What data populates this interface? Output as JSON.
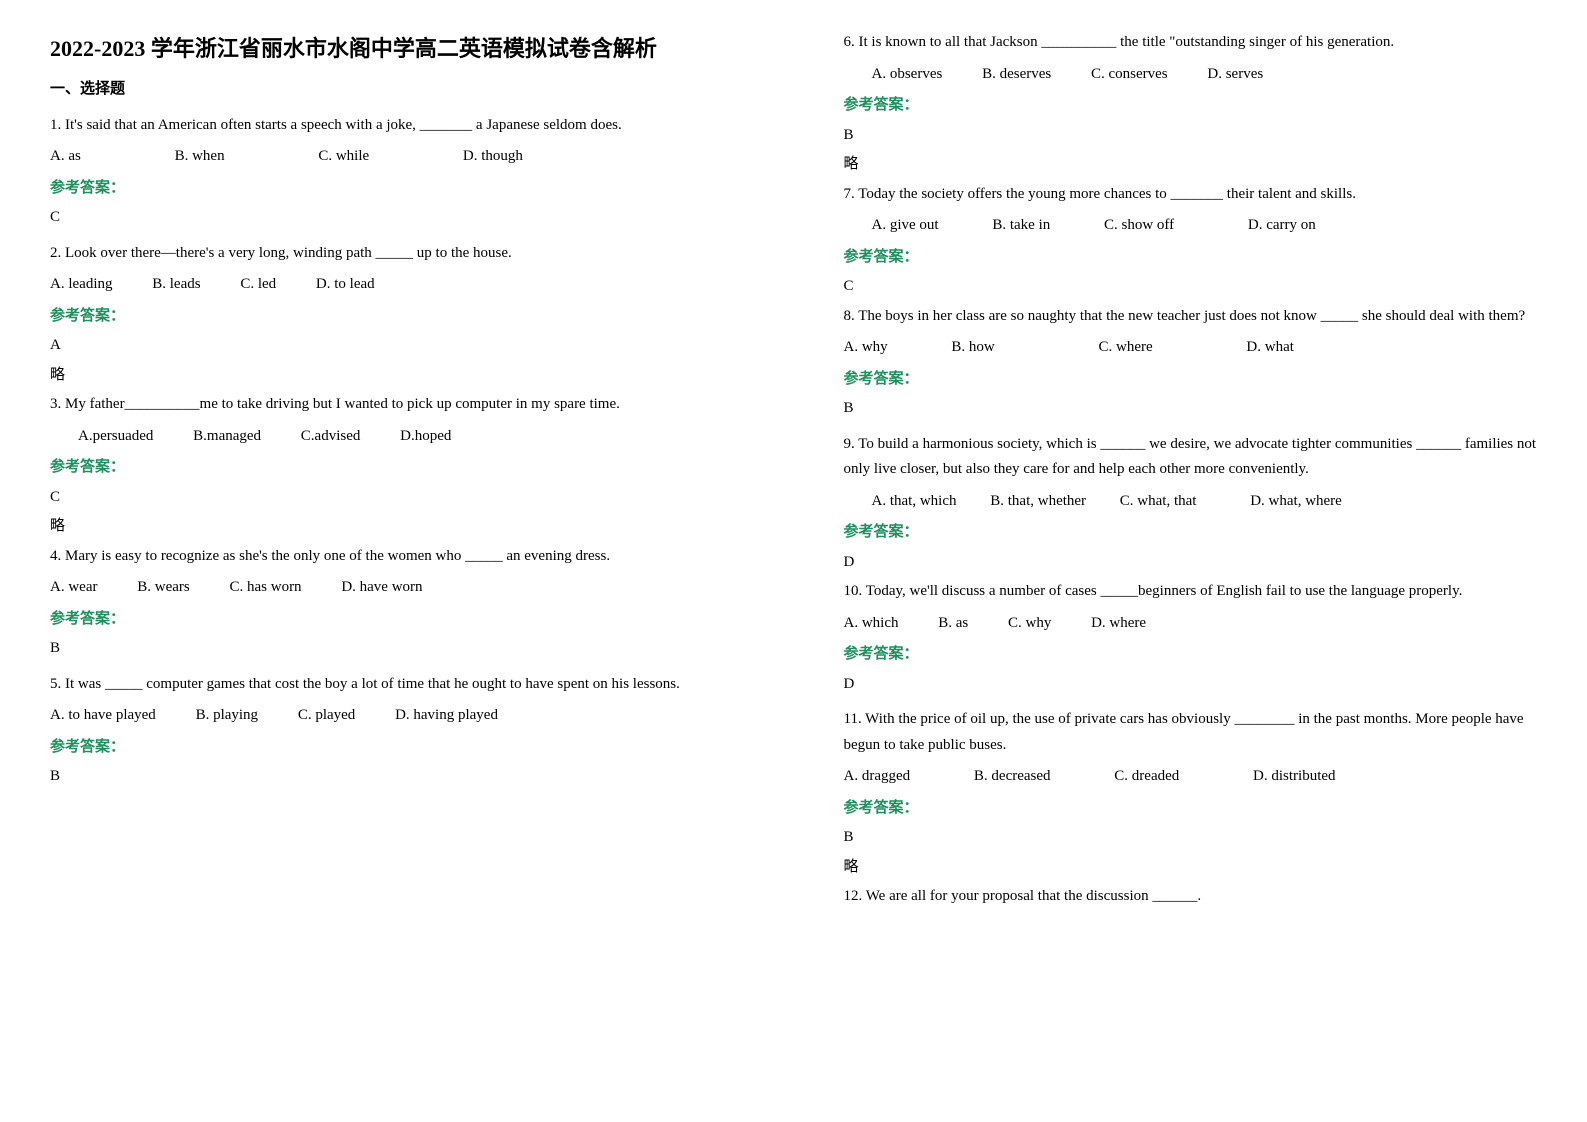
{
  "left": {
    "title": "2022-2023 学年浙江省丽水市水阁中学高二英语模拟试卷含解析",
    "section1": "一、选择题",
    "q1": {
      "text": "1. It's said that an American often starts a speech with a joke, _______ a Japanese seldom does.",
      "opts": [
        "A. as",
        "B. when",
        "C. while",
        "D. though"
      ],
      "ansLabel": "参考答案：",
      "ans": "C"
    },
    "q2": {
      "text": "2. Look over there—there's a very long, winding path _____ up to the house.",
      "opts": [
        "A. leading",
        "B. leads",
        "C. led",
        "D. to lead"
      ],
      "ansLabel": "参考答案：",
      "ans": "A",
      "note": "略"
    },
    "q3": {
      "text": "3. My father__________me to take driving but I wanted to pick up computer in my spare time.",
      "opts": [
        "A.persuaded",
        "B.managed",
        "C.advised",
        "D.hoped"
      ],
      "ansLabel": "参考答案：",
      "ans": "C",
      "note": "略"
    },
    "q4": {
      "text": "4. Mary is easy to recognize as she's the only one of the women who _____ an evening dress.",
      "opts": [
        "A. wear",
        "B. wears",
        "C. has worn",
        "D. have worn"
      ],
      "ansLabel": "参考答案：",
      "ans": "B"
    },
    "q5": {
      "text": "5. It was _____ computer games that cost the boy a lot of time that he ought to have spent on his lessons.",
      "opts": [
        "A. to have played",
        "B. playing",
        "C. played",
        "D. having played"
      ],
      "ansLabel": "参考答案：",
      "ans": "B"
    }
  },
  "right": {
    "q6": {
      "text": "6. It is known to all that Jackson __________ the title \"outstanding singer of his generation.",
      "opts": [
        "A. observes",
        "B. deserves",
        "C. conserves",
        "D. serves"
      ],
      "ansLabel": "参考答案：",
      "ans": "B",
      "note": "略"
    },
    "q7": {
      "text": "7. Today the society offers the young more chances to _______ their talent and skills.",
      "opts": [
        "A. give out",
        "B. take in",
        "C. show off",
        "D. carry on"
      ],
      "ansLabel": "参考答案：",
      "ans": "C"
    },
    "q8": {
      "text": "8. The boys in her class are so naughty that the new teacher just does not know _____ she should deal with them?",
      "opts": [
        "A. why",
        "B. how",
        "C. where",
        "D. what"
      ],
      "ansLabel": "参考答案：",
      "ans": "B"
    },
    "q9": {
      "text": "9. To build a harmonious society, which is ______ we desire, we advocate tighter communities ______ families not only live closer, but also they care for and help each other more conveniently.",
      "opts": [
        "A. that, which",
        "B. that, whether",
        "C. what, that",
        "D. what, where"
      ],
      "ansLabel": "参考答案：",
      "ans": "D"
    },
    "q10": {
      "text": "10. Today, we'll discuss a number of cases _____beginners of English fail to use the language properly.",
      "opts": [
        "A. which",
        "B. as",
        "C. why",
        "D. where"
      ],
      "ansLabel": "参考答案：",
      "ans": "D"
    },
    "q11": {
      "text": "11. With the price of oil up, the use of private cars has obviously ________ in the past months. More people have begun to take public buses.",
      "opts": [
        "A. dragged",
        "B. decreased",
        "C. dreaded",
        "D. distributed"
      ],
      "ansLabel": "参考答案：",
      "ans": "B",
      "note": "略"
    },
    "q12": {
      "text": "12. We are all for your proposal that the discussion ______."
    }
  }
}
